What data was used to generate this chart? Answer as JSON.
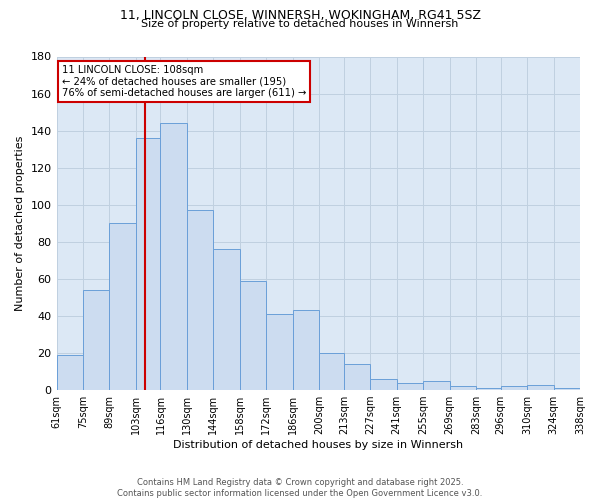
{
  "title_line1": "11, LINCOLN CLOSE, WINNERSH, WOKINGHAM, RG41 5SZ",
  "title_line2": "Size of property relative to detached houses in Winnersh",
  "xlabel": "Distribution of detached houses by size in Winnersh",
  "ylabel": "Number of detached properties",
  "bin_edges": [
    61,
    75,
    89,
    103,
    116,
    130,
    144,
    158,
    172,
    186,
    200,
    213,
    227,
    241,
    255,
    269,
    283,
    296,
    310,
    324,
    338
  ],
  "bar_values": [
    19,
    54,
    90,
    136,
    144,
    97,
    76,
    59,
    41,
    43,
    20,
    14,
    6,
    4,
    5,
    2,
    1,
    2,
    3,
    1
  ],
  "bar_color": "#ccdcf0",
  "bar_edge_color": "#6a9fd8",
  "grid_color": "#c0d0e0",
  "plot_bg_color": "#dce8f5",
  "fig_bg_color": "#ffffff",
  "vline_x": 108,
  "vline_color": "#cc0000",
  "annotation_text": "11 LINCOLN CLOSE: 108sqm\n← 24% of detached houses are smaller (195)\n76% of semi-detached houses are larger (611) →",
  "annotation_box_facecolor": "#ffffff",
  "annotation_box_edgecolor": "#cc0000",
  "ylim": [
    0,
    180
  ],
  "yticks": [
    0,
    20,
    40,
    60,
    80,
    100,
    120,
    140,
    160,
    180
  ],
  "footer_line1": "Contains HM Land Registry data © Crown copyright and database right 2025.",
  "footer_line2": "Contains public sector information licensed under the Open Government Licence v3.0."
}
